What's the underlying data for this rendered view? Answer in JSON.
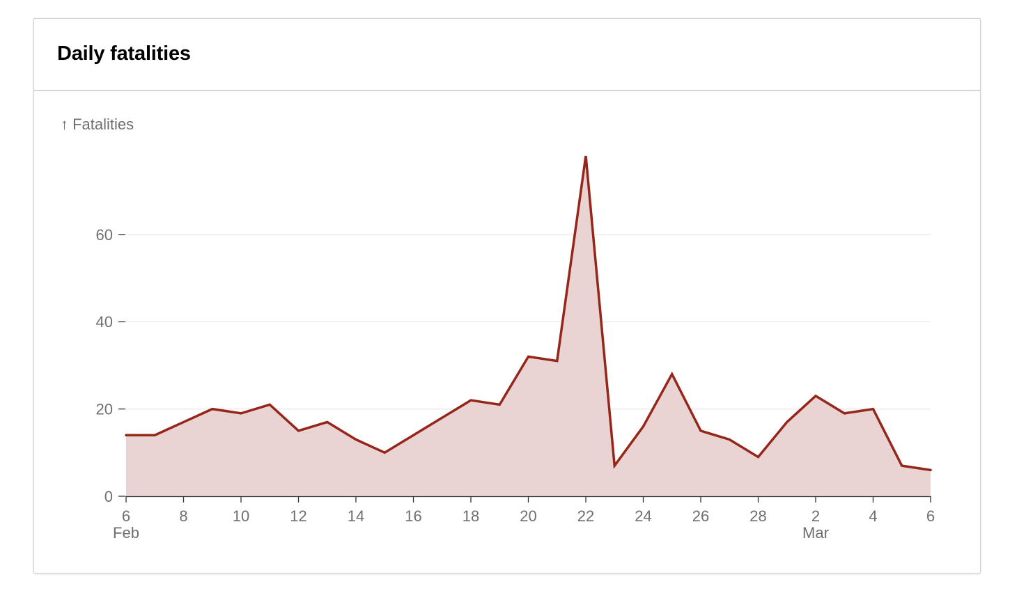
{
  "card": {
    "title": "Daily fatalities"
  },
  "colors": {
    "line": "#962619",
    "area": "#e9d4d3",
    "grid": "#ececec",
    "axis": "#333333",
    "tick_text": "#6f6f6f"
  },
  "chart_data": {
    "type": "area",
    "ylabel": "↑ Fatalities",
    "ylim": [
      0,
      78
    ],
    "yticks": [
      0,
      20,
      40,
      60
    ],
    "grid": true,
    "x_start": "2023-02-06",
    "x_end": "2023-03-06",
    "xticks": [
      {
        "date": "2023-02-06",
        "label": "6",
        "sublabel": "Feb"
      },
      {
        "date": "2023-02-08",
        "label": "8"
      },
      {
        "date": "2023-02-10",
        "label": "10"
      },
      {
        "date": "2023-02-12",
        "label": "12"
      },
      {
        "date": "2023-02-14",
        "label": "14"
      },
      {
        "date": "2023-02-16",
        "label": "16"
      },
      {
        "date": "2023-02-18",
        "label": "18"
      },
      {
        "date": "2023-02-20",
        "label": "20"
      },
      {
        "date": "2023-02-22",
        "label": "22"
      },
      {
        "date": "2023-02-24",
        "label": "24"
      },
      {
        "date": "2023-02-26",
        "label": "26"
      },
      {
        "date": "2023-02-28",
        "label": "28"
      },
      {
        "date": "2023-03-02",
        "label": "2",
        "sublabel": "Mar"
      },
      {
        "date": "2023-03-04",
        "label": "4"
      },
      {
        "date": "2023-03-06",
        "label": "6"
      }
    ],
    "points": [
      {
        "date": "2023-02-06",
        "value": 14
      },
      {
        "date": "2023-02-07",
        "value": 14
      },
      {
        "date": "2023-02-08",
        "value": 17
      },
      {
        "date": "2023-02-09",
        "value": 20
      },
      {
        "date": "2023-02-10",
        "value": 19
      },
      {
        "date": "2023-02-11",
        "value": 21
      },
      {
        "date": "2023-02-12",
        "value": 15
      },
      {
        "date": "2023-02-13",
        "value": 17
      },
      {
        "date": "2023-02-14",
        "value": 13
      },
      {
        "date": "2023-02-15",
        "value": 10
      },
      {
        "date": "2023-02-16",
        "value": 14
      },
      {
        "date": "2023-02-17",
        "value": 18
      },
      {
        "date": "2023-02-18",
        "value": 22
      },
      {
        "date": "2023-02-19",
        "value": 21
      },
      {
        "date": "2023-02-20",
        "value": 32
      },
      {
        "date": "2023-02-21",
        "value": 31
      },
      {
        "date": "2023-02-22",
        "value": 78
      },
      {
        "date": "2023-02-23",
        "value": 7
      },
      {
        "date": "2023-02-24",
        "value": 16
      },
      {
        "date": "2023-02-25",
        "value": 28
      },
      {
        "date": "2023-02-26",
        "value": 15
      },
      {
        "date": "2023-02-27",
        "value": 13
      },
      {
        "date": "2023-02-28",
        "value": 9
      },
      {
        "date": "2023-03-01",
        "value": 17
      },
      {
        "date": "2023-03-02",
        "value": 23
      },
      {
        "date": "2023-03-03",
        "value": 19
      },
      {
        "date": "2023-03-04",
        "value": 20
      },
      {
        "date": "2023-03-05",
        "value": 7
      },
      {
        "date": "2023-03-06",
        "value": 6
      }
    ]
  }
}
